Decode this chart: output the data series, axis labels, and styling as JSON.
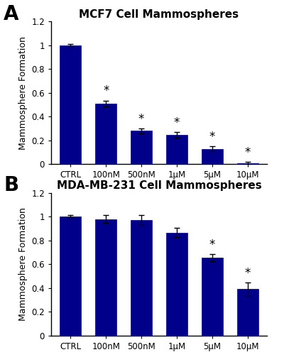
{
  "panel_A": {
    "title": "MCF7 Cell Mammospheres",
    "categories": [
      "CTRL",
      "100nM",
      "500nM",
      "1μM",
      "5μM",
      "10μM"
    ],
    "values": [
      1.0,
      0.51,
      0.28,
      0.245,
      0.13,
      0.01
    ],
    "errors": [
      0.01,
      0.025,
      0.02,
      0.025,
      0.02,
      0.008
    ],
    "significance": [
      false,
      true,
      true,
      true,
      true,
      true
    ],
    "ylabel": "Mammosphere Formation",
    "ylim": [
      0,
      1.2
    ],
    "yticks": [
      0,
      0.2,
      0.4,
      0.6,
      0.8,
      1.0,
      1.2
    ]
  },
  "panel_B": {
    "title": "MDA-MB-231 Cell Mammospheres",
    "categories": [
      "CTRL",
      "100nM",
      "500nM",
      "1μM",
      "5μM",
      "10μM"
    ],
    "values": [
      1.0,
      0.98,
      0.97,
      0.865,
      0.655,
      0.39
    ],
    "errors": [
      0.01,
      0.03,
      0.04,
      0.04,
      0.03,
      0.055
    ],
    "significance": [
      false,
      false,
      false,
      false,
      true,
      true
    ],
    "ylabel": "Mammosphere Formation",
    "ylim": [
      0,
      1.2
    ],
    "yticks": [
      0,
      0.2,
      0.4,
      0.6,
      0.8,
      1.0,
      1.2
    ]
  },
  "bar_color": "#00008B",
  "bar_edge_color": "#00008B",
  "error_color": "black",
  "fig_width": 4.0,
  "fig_height": 5.03,
  "title_fontsize": 11,
  "tick_fontsize": 8.5,
  "ylabel_fontsize": 9,
  "star_fontsize": 12,
  "panel_label_fontsize": 20
}
